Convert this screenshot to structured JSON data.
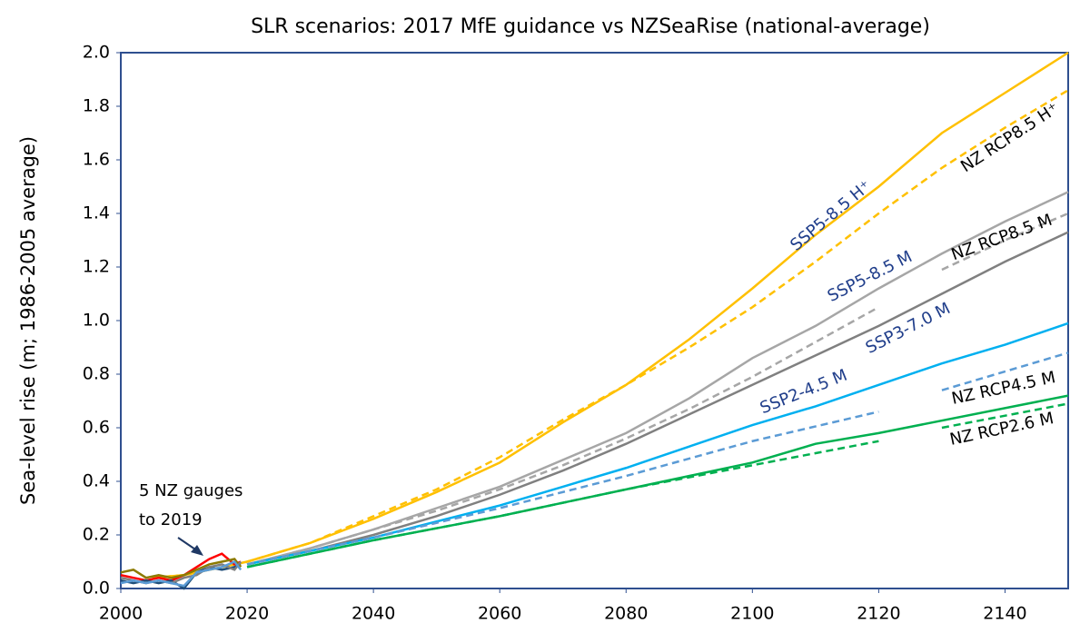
{
  "chart_data": {
    "type": "line",
    "title": "SLR scenarios: 2017 MfE guidance vs NZSeaRise (national-average)",
    "y_label": "Sea-level rise (m; 1986-2005 average)",
    "annotation": [
      "5 NZ gauges",
      "to 2019"
    ],
    "xlim": [
      2000,
      2150
    ],
    "xticks": [
      2000,
      2020,
      2040,
      2060,
      2080,
      2100,
      2120,
      2140
    ],
    "ylim": [
      0,
      2
    ],
    "yticks": [
      {
        "value": 0,
        "label": "0.0"
      },
      0.2,
      0.4,
      0.6,
      0.8,
      {
        "value": 1,
        "label": "1.0"
      },
      1.2,
      1.4,
      1.6,
      1.8,
      {
        "value": 2,
        "label": "2.0"
      }
    ],
    "series": [
      {
        "name": "SSP5-8.5 H⁺",
        "color": "#ffc000",
        "dashed": false,
        "x": [
          2005,
          2010,
          2020,
          2030,
          2040,
          2050,
          2060,
          2070,
          2080,
          2090,
          2100,
          2110,
          2120,
          2130,
          2140,
          2150
        ],
        "values": [
          0.04,
          0.05,
          0.1,
          0.17,
          0.26,
          0.36,
          0.47,
          0.62,
          0.76,
          0.93,
          1.12,
          1.32,
          1.5,
          1.7,
          1.85,
          2.0
        ]
      },
      {
        "name": "NZ RCP8.5 H⁺",
        "color": "#ffc000",
        "dashed": true,
        "x": [
          2005,
          2010,
          2020,
          2030,
          2040,
          2050,
          2060,
          2070,
          2080,
          2090,
          2100,
          2110,
          2120,
          2130,
          2140,
          2150
        ],
        "values": [
          0.04,
          0.05,
          0.1,
          0.17,
          0.27,
          0.37,
          0.49,
          0.63,
          0.76,
          0.9,
          1.05,
          1.22,
          1.4,
          1.57,
          1.72,
          1.86
        ]
      },
      {
        "name": "SSP5-8.5 M",
        "color": "#a6a6a6",
        "dashed": false,
        "x": [
          2020,
          2030,
          2040,
          2050,
          2060,
          2070,
          2080,
          2090,
          2100,
          2110,
          2120,
          2130,
          2140,
          2150
        ],
        "values": [
          0.09,
          0.15,
          0.22,
          0.3,
          0.38,
          0.48,
          0.58,
          0.71,
          0.86,
          0.98,
          1.12,
          1.25,
          1.37,
          1.48
        ]
      },
      {
        "name": "NZ RCP8.5 M",
        "color": "#a6a6a6",
        "dashed": true,
        "x": [
          2020,
          2030,
          2040,
          2050,
          2060,
          2070,
          2080,
          2090,
          2100,
          2110,
          2120,
          2125,
          2130,
          2140,
          2150
        ],
        "values": [
          0.09,
          0.15,
          0.22,
          0.29,
          0.37,
          0.46,
          0.56,
          0.67,
          0.79,
          0.92,
          1.05,
          null,
          1.19,
          1.3,
          1.4
        ]
      },
      {
        "name": "SSP3-7.0 M",
        "color": "#808080",
        "dashed": false,
        "x": [
          2020,
          2030,
          2040,
          2050,
          2060,
          2070,
          2080,
          2090,
          2100,
          2110,
          2120,
          2130,
          2140,
          2150
        ],
        "values": [
          0.09,
          0.14,
          0.2,
          0.27,
          0.35,
          0.44,
          0.54,
          0.65,
          0.76,
          0.87,
          0.98,
          1.1,
          1.22,
          1.33
        ]
      },
      {
        "name": "SSP2-4.5 M",
        "color": "#00b0f0",
        "dashed": false,
        "x": [
          2020,
          2030,
          2040,
          2050,
          2060,
          2070,
          2080,
          2090,
          2100,
          2110,
          2120,
          2130,
          2140,
          2150
        ],
        "values": [
          0.09,
          0.14,
          0.19,
          0.25,
          0.31,
          0.38,
          0.45,
          0.53,
          0.61,
          0.68,
          0.76,
          0.84,
          0.91,
          0.99
        ]
      },
      {
        "name": "NZ RCP4.5 M",
        "color": "#5b9bd5",
        "dashed": true,
        "x": [
          2020,
          2040,
          2060,
          2080,
          2100,
          2120,
          2125,
          2130,
          2150
        ],
        "values": [
          0.09,
          0.19,
          0.3,
          0.42,
          0.55,
          0.66,
          null,
          0.74,
          0.88
        ]
      },
      {
        "color": "#00b050",
        "dashed": false,
        "x": [
          2020,
          2040,
          2060,
          2080,
          2100,
          2110,
          2120,
          2150
        ],
        "values": [
          0.08,
          0.18,
          0.27,
          0.37,
          0.47,
          0.54,
          0.58,
          0.72
        ]
      },
      {
        "name": "NZ RCP2.6 M",
        "color": "#00b050",
        "dashed": true,
        "x": [
          2020,
          2040,
          2060,
          2080,
          2100,
          2120,
          2125,
          2130,
          2150
        ],
        "values": [
          0.08,
          0.18,
          0.27,
          0.37,
          0.46,
          0.55,
          null,
          0.6,
          0.69
        ]
      },
      {
        "color": "#ff0000",
        "dashed": false,
        "x": [
          2000,
          2002,
          2004,
          2006,
          2008,
          2010,
          2012,
          2014,
          2016,
          2018,
          2019
        ],
        "values": [
          0.05,
          0.04,
          0.03,
          0.04,
          0.03,
          0.05,
          0.08,
          0.11,
          0.13,
          0.09,
          0.1
        ]
      },
      {
        "color": "#1f4e79",
        "dashed": false,
        "x": [
          2000,
          2002,
          2004,
          2006,
          2008,
          2010,
          2012,
          2014,
          2016,
          2018,
          2019
        ],
        "values": [
          0.03,
          0.02,
          0.03,
          0.02,
          0.03,
          0.0,
          0.06,
          0.08,
          0.07,
          0.08,
          0.09
        ]
      },
      {
        "color": "#8c7a00",
        "dashed": false,
        "x": [
          2000,
          2002,
          2004,
          2006,
          2008,
          2010,
          2012,
          2014,
          2016,
          2018,
          2019
        ],
        "values": [
          0.06,
          0.07,
          0.04,
          0.05,
          0.04,
          0.05,
          0.07,
          0.09,
          0.1,
          0.11,
          0.08
        ]
      },
      {
        "color": "#7f7f7f",
        "dashed": false,
        "x": [
          2000,
          2002,
          2004,
          2006,
          2008,
          2010,
          2012,
          2014,
          2016,
          2018,
          2019
        ],
        "values": [
          0.04,
          0.03,
          0.02,
          0.03,
          0.02,
          0.04,
          0.05,
          0.08,
          0.09,
          0.07,
          0.1
        ]
      },
      {
        "color": "#5b9bd5",
        "dashed": false,
        "x": [
          2000,
          2002,
          2004,
          2006,
          2008,
          2010,
          2012,
          2014,
          2016,
          2018,
          2019
        ],
        "values": [
          0.02,
          0.03,
          0.02,
          0.03,
          0.02,
          0.01,
          0.06,
          0.07,
          0.08,
          0.1,
          0.07
        ]
      }
    ]
  }
}
